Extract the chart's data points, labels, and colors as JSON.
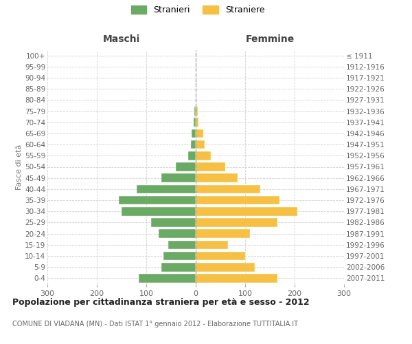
{
  "age_groups": [
    "0-4",
    "5-9",
    "10-14",
    "15-19",
    "20-24",
    "25-29",
    "30-34",
    "35-39",
    "40-44",
    "45-49",
    "50-54",
    "55-59",
    "60-64",
    "65-69",
    "70-74",
    "75-79",
    "80-84",
    "85-89",
    "90-94",
    "95-99",
    "100+"
  ],
  "birth_years": [
    "2007-2011",
    "2002-2006",
    "1997-2001",
    "1992-1996",
    "1987-1991",
    "1982-1986",
    "1977-1981",
    "1972-1976",
    "1967-1971",
    "1962-1966",
    "1957-1961",
    "1952-1956",
    "1947-1951",
    "1942-1946",
    "1937-1941",
    "1932-1936",
    "1927-1931",
    "1922-1926",
    "1917-1921",
    "1912-1916",
    "≤ 1911"
  ],
  "males": [
    115,
    70,
    65,
    55,
    75,
    90,
    150,
    155,
    120,
    70,
    40,
    15,
    10,
    8,
    4,
    3,
    0,
    0,
    0,
    0,
    0
  ],
  "females": [
    165,
    120,
    100,
    65,
    110,
    165,
    205,
    170,
    130,
    85,
    60,
    30,
    18,
    15,
    5,
    4,
    0,
    0,
    0,
    0,
    0
  ],
  "male_color": "#6aaa64",
  "female_color": "#f5c043",
  "background_color": "#ffffff",
  "grid_color": "#cccccc",
  "title": "Popolazione per cittadinanza straniera per età e sesso - 2012",
  "subtitle": "COMUNE DI VIADANA (MN) - Dati ISTAT 1° gennaio 2012 - Elaborazione TUTTITALIA.IT",
  "ylabel_left": "Fasce di età",
  "xlabel_left": "Maschi",
  "xlabel_right": "Femmine",
  "legend_male": "Stranieri",
  "legend_female": "Straniere",
  "xlim": 300
}
